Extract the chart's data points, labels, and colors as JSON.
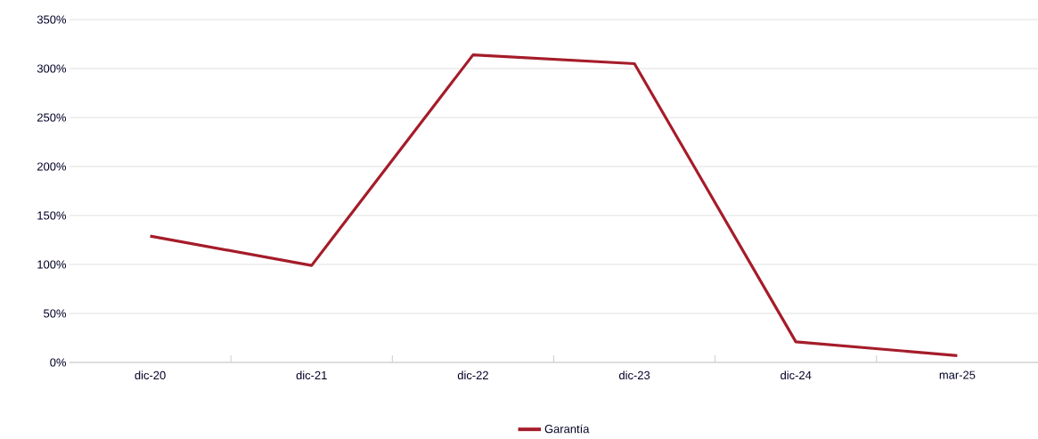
{
  "chart_data": {
    "type": "line",
    "categories": [
      "dic-20",
      "dic-21",
      "dic-22",
      "dic-23",
      "dic-24",
      "mar-25"
    ],
    "series": [
      {
        "name": "Garantía",
        "color": "#a51c2a",
        "values": [
          129,
          99,
          314,
          305,
          21,
          7
        ]
      }
    ],
    "ylim": [
      0,
      350
    ],
    "yticks": [
      {
        "value": 0,
        "label": "0%"
      },
      {
        "value": 50,
        "label": "50%"
      },
      {
        "value": 100,
        "label": "100%"
      },
      {
        "value": 150,
        "label": "150%"
      },
      {
        "value": 200,
        "label": "200%"
      },
      {
        "value": 250,
        "label": "250%"
      },
      {
        "value": 300,
        "label": "300%"
      },
      {
        "value": 350,
        "label": "350%"
      }
    ],
    "grid": "y",
    "legend": "bottom",
    "marker": "none",
    "line_style": "solid"
  }
}
